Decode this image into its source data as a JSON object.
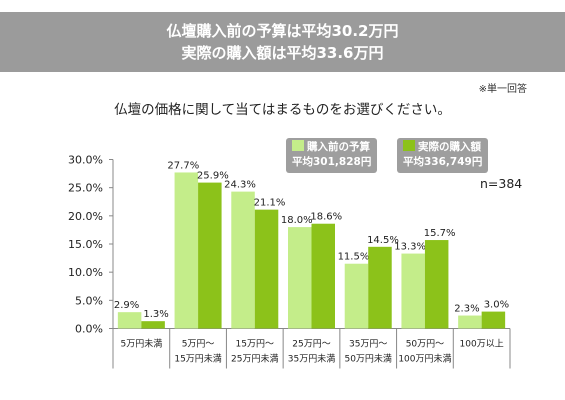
{
  "header": {
    "line1": "仏壇購入前の予算は平均30.2万円",
    "line2": "実際の購入額は平均33.6万円"
  },
  "note": "※単一回答",
  "question": "仏壇の価格に関して当てはまるものをお選びください。",
  "n_label": "n=384",
  "legend": [
    {
      "name": "購入前の予算",
      "sub": "平均301,828円",
      "color": "#c4ed8a"
    },
    {
      "name": "実際の購入額",
      "sub": "平均336,749円",
      "color": "#8cc21a"
    }
  ],
  "chart_data": {
    "type": "bar",
    "categories": [
      [
        "5万円未満"
      ],
      [
        "5万円～",
        "15万円未満"
      ],
      [
        "15万円～",
        "25万円未満"
      ],
      [
        "25万円～",
        "35万円未満"
      ],
      [
        "35万円～",
        "50万円未満"
      ],
      [
        "50万円～",
        "100万円未満"
      ],
      [
        "100万以上"
      ]
    ],
    "series": [
      {
        "name": "購入前の予算",
        "values": [
          2.9,
          27.7,
          24.3,
          18.0,
          11.5,
          13.3,
          2.3
        ],
        "labels": [
          "2.9%",
          "27.7%",
          "24.3%",
          "18.0%",
          "11.5%",
          "13.3%",
          "2.3%"
        ],
        "color": "#c4ed8a"
      },
      {
        "name": "実際の購入額",
        "values": [
          1.3,
          25.9,
          21.1,
          18.6,
          14.5,
          15.7,
          3.0
        ],
        "labels": [
          "1.3%",
          "25.9%",
          "21.1%",
          "18.6%",
          "14.5%",
          "15.7%",
          "3.0%"
        ],
        "color": "#8cc21a"
      }
    ],
    "yticks": [
      "0.0%",
      "5.0%",
      "10.0%",
      "15.0%",
      "20.0%",
      "25.0%",
      "30.0%"
    ],
    "ylim": [
      0,
      30
    ],
    "grid": false
  }
}
